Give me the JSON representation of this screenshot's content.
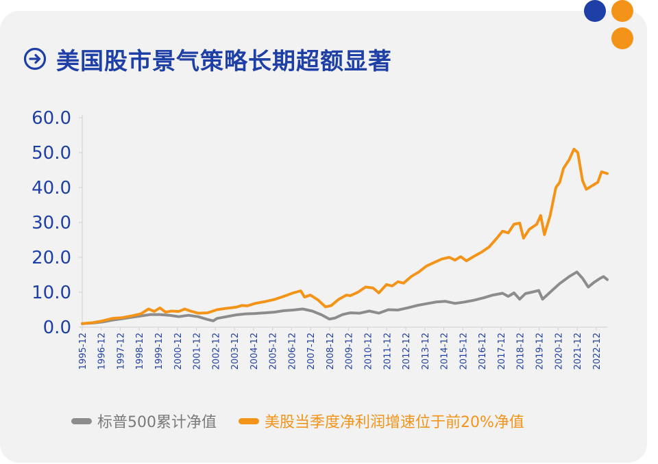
{
  "title": "美国股市景气策略长期超额显著",
  "colors": {
    "accent_blue": "#1e3fa6",
    "accent_orange": "#f39419",
    "series_gray": "#8c8c8c",
    "series_orange": "#f39419",
    "dot_blue": "#1e3fa6",
    "dot_orange": "#f39419"
  },
  "icons": {
    "title": "arrow-right-circle-icon"
  },
  "chart_data": {
    "type": "line",
    "title": "美国股市景气策略长期超额显著",
    "xlabel": "",
    "ylabel": "",
    "ylim": [
      0,
      60
    ],
    "y_ticks": [
      "0.0",
      "10.0",
      "20.0",
      "30.0",
      "40.0",
      "50.0",
      "60.0"
    ],
    "x_range": [
      1995.92,
      2023.5
    ],
    "x_tick_labels": [
      "1995-12",
      "1996-12",
      "1997-12",
      "1998-12",
      "1999-12",
      "2000-12",
      "2001-12",
      "2002-12",
      "2003-12",
      "2004-12",
      "2005-12",
      "2006-12",
      "2007-12",
      "2008-12",
      "2009-12",
      "2010-12",
      "2011-12",
      "2012-12",
      "2013-12",
      "2014-12",
      "2015-12",
      "2016-12",
      "2017-12",
      "2018-12",
      "2019-12",
      "2020-12",
      "2021-12",
      "2022-12"
    ],
    "legend_position": "bottom",
    "grid": false,
    "series": [
      {
        "name": "标普500累计净值",
        "points": [
          [
            1995.92,
            1.0
          ],
          [
            1996.5,
            1.2
          ],
          [
            1997.0,
            1.5
          ],
          [
            1997.5,
            2.0
          ],
          [
            1998.0,
            2.4
          ],
          [
            1998.5,
            2.8
          ],
          [
            1999.0,
            3.2
          ],
          [
            1999.5,
            3.6
          ],
          [
            2000.0,
            3.6
          ],
          [
            2000.5,
            3.4
          ],
          [
            2001.0,
            3.0
          ],
          [
            2001.5,
            3.4
          ],
          [
            2002.0,
            3.0
          ],
          [
            2002.5,
            2.2
          ],
          [
            2002.8,
            1.8
          ],
          [
            2003.0,
            2.5
          ],
          [
            2003.5,
            3.0
          ],
          [
            2004.0,
            3.5
          ],
          [
            2004.5,
            3.8
          ],
          [
            2005.0,
            3.9
          ],
          [
            2005.5,
            4.1
          ],
          [
            2006.0,
            4.3
          ],
          [
            2006.5,
            4.7
          ],
          [
            2007.0,
            4.9
          ],
          [
            2007.5,
            5.2
          ],
          [
            2008.0,
            4.6
          ],
          [
            2008.5,
            3.5
          ],
          [
            2008.9,
            2.3
          ],
          [
            2009.2,
            2.6
          ],
          [
            2009.6,
            3.6
          ],
          [
            2010.0,
            4.1
          ],
          [
            2010.5,
            4.0
          ],
          [
            2011.0,
            4.6
          ],
          [
            2011.5,
            4.0
          ],
          [
            2012.0,
            5.0
          ],
          [
            2012.5,
            4.9
          ],
          [
            2013.0,
            5.5
          ],
          [
            2013.5,
            6.2
          ],
          [
            2014.0,
            6.7
          ],
          [
            2014.5,
            7.2
          ],
          [
            2015.0,
            7.4
          ],
          [
            2015.5,
            6.8
          ],
          [
            2016.0,
            7.2
          ],
          [
            2016.5,
            7.7
          ],
          [
            2017.0,
            8.4
          ],
          [
            2017.5,
            9.2
          ],
          [
            2018.0,
            9.7
          ],
          [
            2018.3,
            8.8
          ],
          [
            2018.6,
            9.8
          ],
          [
            2018.9,
            8.0
          ],
          [
            2019.2,
            9.6
          ],
          [
            2019.6,
            10.1
          ],
          [
            2019.9,
            10.5
          ],
          [
            2020.1,
            8.0
          ],
          [
            2020.6,
            10.5
          ],
          [
            2021.0,
            12.5
          ],
          [
            2021.5,
            14.5
          ],
          [
            2021.9,
            15.8
          ],
          [
            2022.2,
            14.0
          ],
          [
            2022.5,
            11.5
          ],
          [
            2022.8,
            12.8
          ],
          [
            2023.1,
            13.9
          ],
          [
            2023.3,
            14.5
          ],
          [
            2023.5,
            13.6
          ]
        ]
      },
      {
        "name": "美股当季度净利润增速位于前20%净值",
        "points": [
          [
            1995.92,
            1.0
          ],
          [
            1996.5,
            1.3
          ],
          [
            1997.0,
            1.8
          ],
          [
            1997.5,
            2.5
          ],
          [
            1998.0,
            2.7
          ],
          [
            1998.5,
            3.2
          ],
          [
            1999.0,
            3.8
          ],
          [
            1999.4,
            5.2
          ],
          [
            1999.7,
            4.5
          ],
          [
            2000.0,
            5.5
          ],
          [
            2000.3,
            4.3
          ],
          [
            2000.6,
            4.6
          ],
          [
            2001.0,
            4.5
          ],
          [
            2001.3,
            5.2
          ],
          [
            2001.6,
            4.6
          ],
          [
            2002.0,
            4.0
          ],
          [
            2002.5,
            4.1
          ],
          [
            2003.0,
            5.0
          ],
          [
            2003.5,
            5.4
          ],
          [
            2004.0,
            5.7
          ],
          [
            2004.3,
            6.2
          ],
          [
            2004.6,
            6.1
          ],
          [
            2005.0,
            6.8
          ],
          [
            2005.5,
            7.3
          ],
          [
            2006.0,
            7.9
          ],
          [
            2006.5,
            8.8
          ],
          [
            2007.0,
            9.8
          ],
          [
            2007.4,
            10.4
          ],
          [
            2007.6,
            8.6
          ],
          [
            2007.9,
            9.2
          ],
          [
            2008.3,
            7.8
          ],
          [
            2008.7,
            5.8
          ],
          [
            2009.0,
            6.2
          ],
          [
            2009.4,
            8.0
          ],
          [
            2009.8,
            9.2
          ],
          [
            2010.0,
            9.0
          ],
          [
            2010.4,
            10.0
          ],
          [
            2010.8,
            11.5
          ],
          [
            2011.2,
            11.2
          ],
          [
            2011.5,
            9.8
          ],
          [
            2011.9,
            12.2
          ],
          [
            2012.2,
            11.8
          ],
          [
            2012.5,
            13.0
          ],
          [
            2012.8,
            12.6
          ],
          [
            2013.2,
            14.5
          ],
          [
            2013.6,
            15.8
          ],
          [
            2014.0,
            17.5
          ],
          [
            2014.4,
            18.5
          ],
          [
            2014.8,
            19.5
          ],
          [
            2015.2,
            20.0
          ],
          [
            2015.5,
            19.2
          ],
          [
            2015.8,
            20.2
          ],
          [
            2016.1,
            19.0
          ],
          [
            2016.5,
            20.3
          ],
          [
            2016.9,
            21.5
          ],
          [
            2017.3,
            23.0
          ],
          [
            2017.7,
            25.5
          ],
          [
            2018.0,
            27.5
          ],
          [
            2018.3,
            27.0
          ],
          [
            2018.6,
            29.5
          ],
          [
            2018.9,
            29.8
          ],
          [
            2019.1,
            25.5
          ],
          [
            2019.4,
            28.0
          ],
          [
            2019.8,
            29.5
          ],
          [
            2020.0,
            32.0
          ],
          [
            2020.2,
            26.5
          ],
          [
            2020.5,
            32.0
          ],
          [
            2020.8,
            40.0
          ],
          [
            2021.0,
            41.5
          ],
          [
            2021.2,
            45.5
          ],
          [
            2021.5,
            48.0
          ],
          [
            2021.75,
            51.0
          ],
          [
            2021.95,
            50.0
          ],
          [
            2022.2,
            42.0
          ],
          [
            2022.4,
            39.5
          ],
          [
            2022.7,
            40.5
          ],
          [
            2023.0,
            41.5
          ],
          [
            2023.2,
            44.5
          ],
          [
            2023.5,
            44.0
          ]
        ]
      }
    ]
  },
  "legend": {
    "gray_label": "标普500累计净值",
    "orange_label": "美股当季度净利润增速位于前20%净值"
  }
}
